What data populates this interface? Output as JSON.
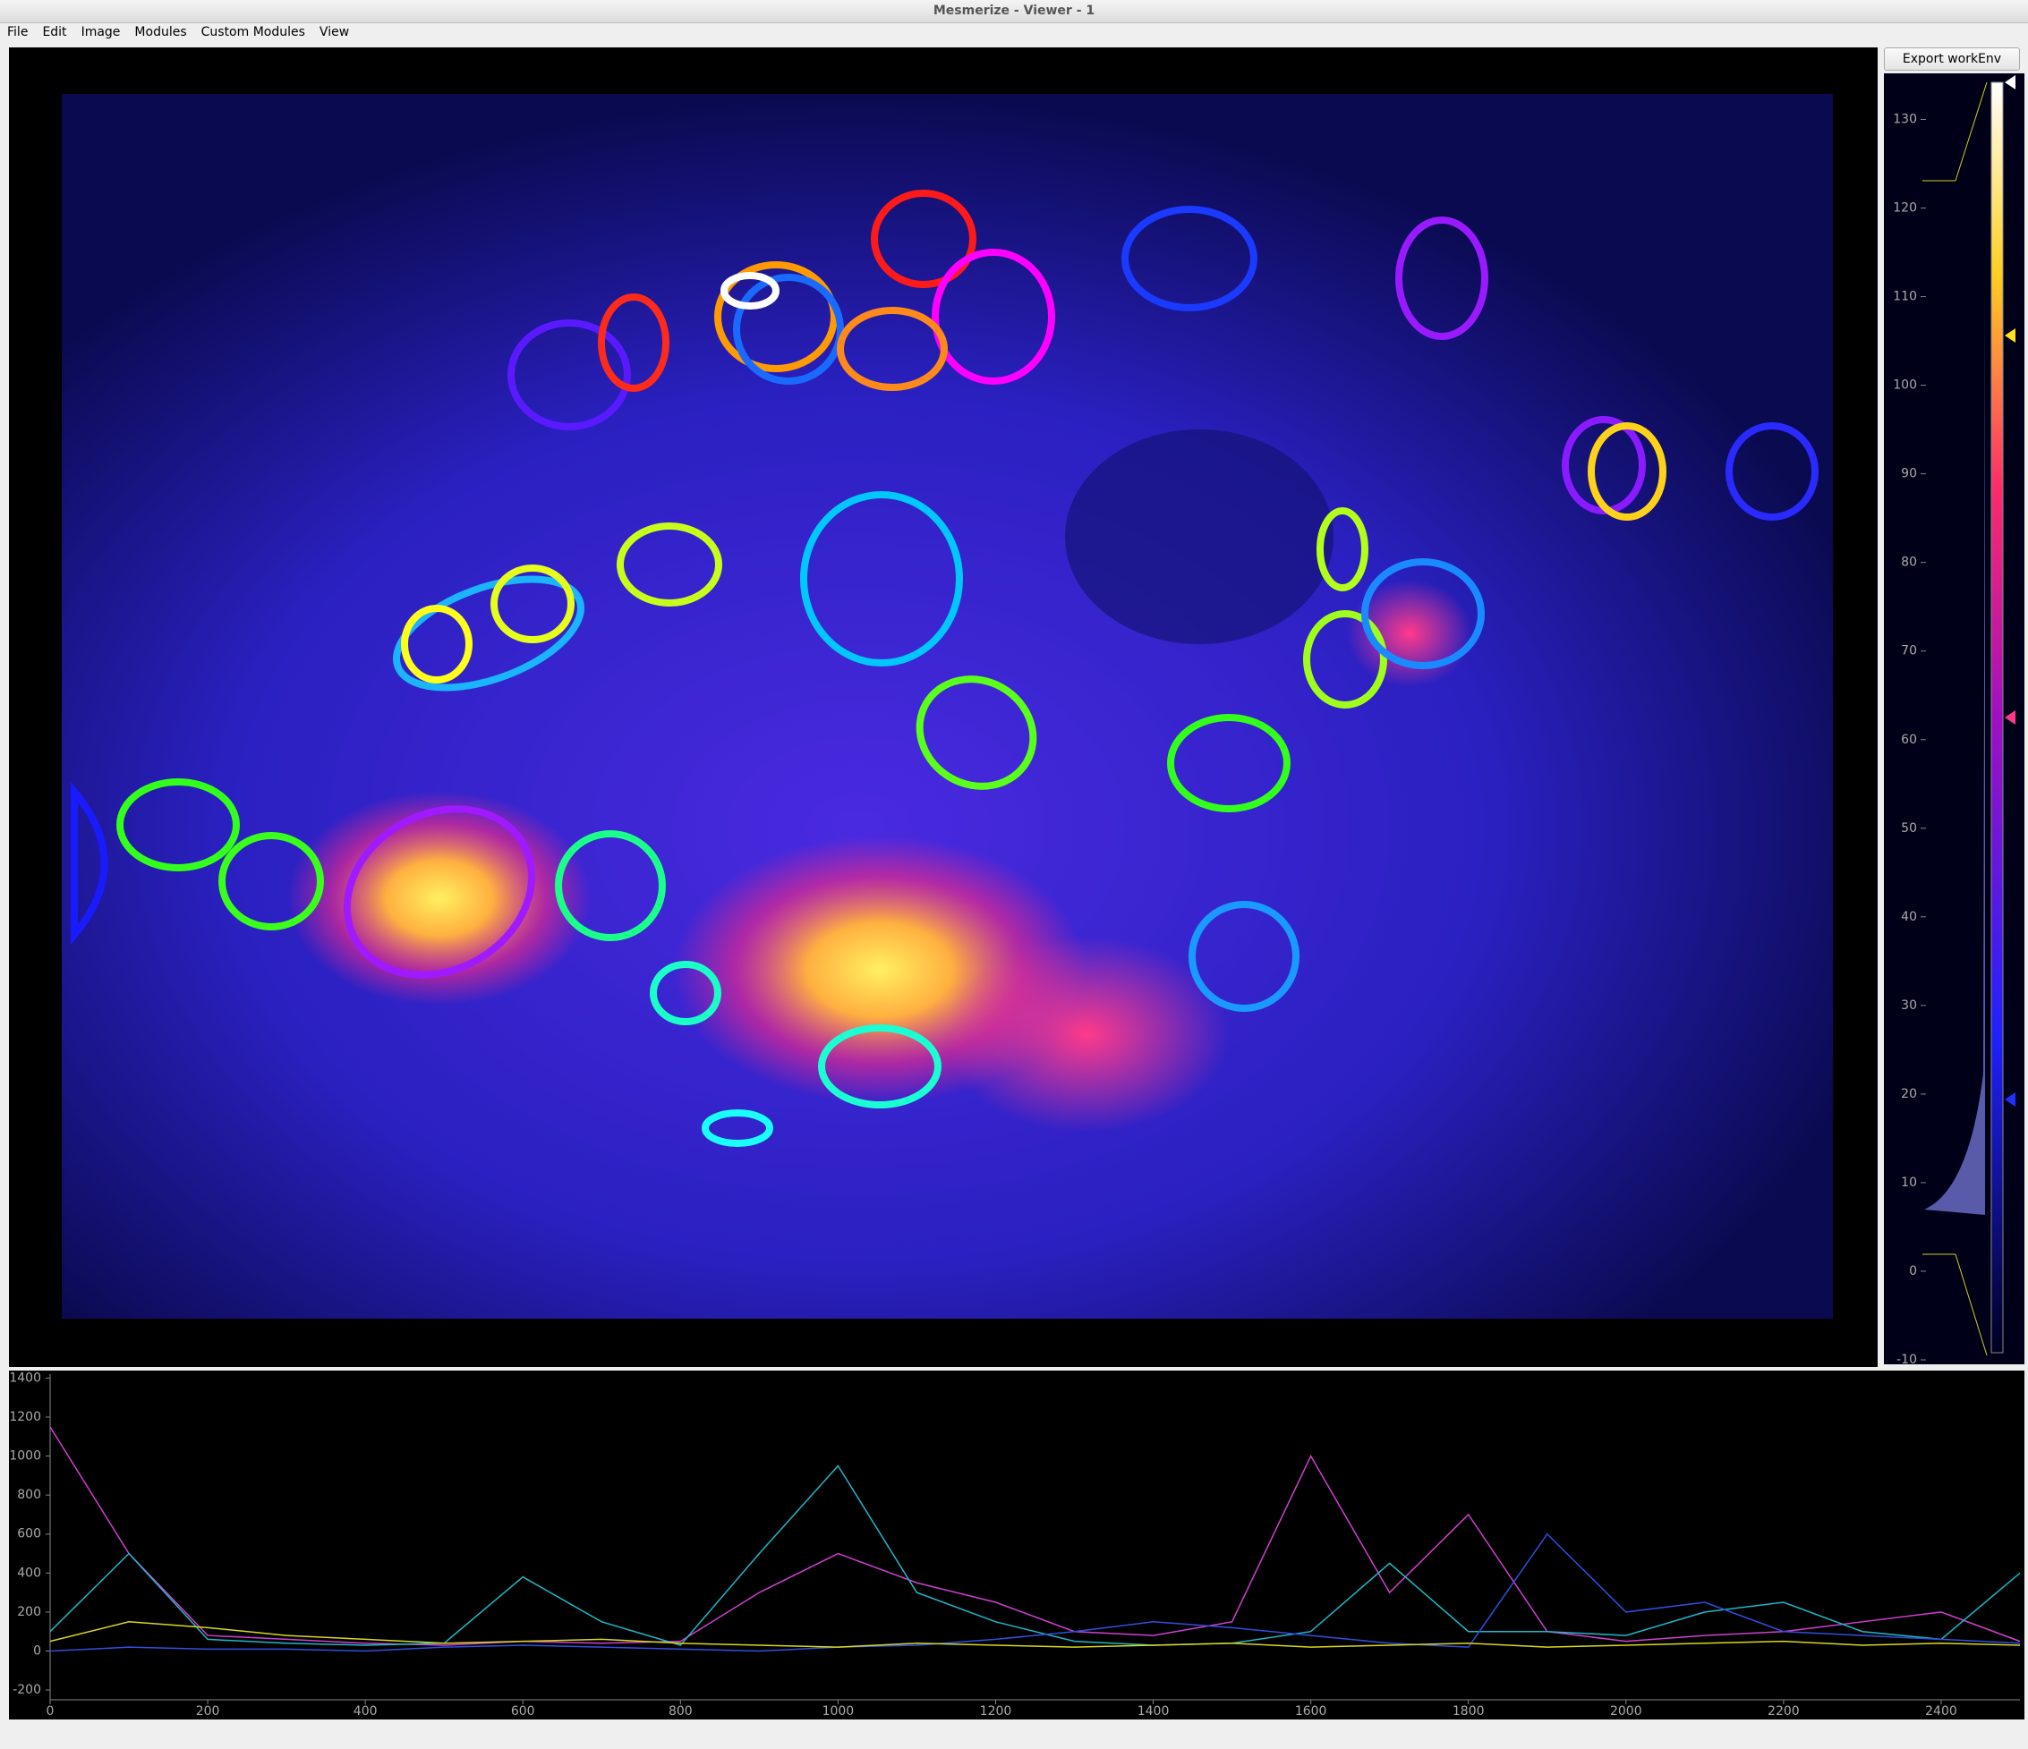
{
  "window": {
    "title": "Mesmerize - Viewer - 1"
  },
  "menu": [
    "File",
    "Edit",
    "Image",
    "Modules",
    "Custom Modules",
    "View"
  ],
  "side_panel": {
    "button": "Export workEnv",
    "histogram_axis": {
      "ylim": [
        -10,
        135
      ],
      "yticks": [
        -10,
        0,
        10,
        20,
        30,
        40,
        50,
        60,
        70,
        80,
        90,
        100,
        110,
        120,
        130
      ]
    }
  },
  "chart_data": {
    "type": "line",
    "xlim": [
      0,
      2500
    ],
    "ylim": [
      -250,
      1420
    ],
    "xticks": [
      0,
      200,
      400,
      600,
      800,
      1000,
      1200,
      1400,
      1600,
      1800,
      2000,
      2200,
      2400
    ],
    "yticks": [
      -200,
      0,
      200,
      400,
      600,
      800,
      1000,
      1200,
      1400
    ],
    "x": [
      0,
      100,
      200,
      300,
      400,
      500,
      600,
      700,
      800,
      900,
      1000,
      1100,
      1200,
      1300,
      1400,
      1500,
      1600,
      1700,
      1800,
      1900,
      2000,
      2100,
      2200,
      2300,
      2400,
      2500
    ],
    "series": [
      {
        "color": "#d040d0",
        "values": [
          1150,
          500,
          80,
          60,
          40,
          30,
          50,
          40,
          50,
          300,
          500,
          350,
          250,
          100,
          80,
          150,
          1000,
          300,
          700,
          100,
          50,
          80,
          100,
          150,
          200,
          50
        ]
      },
      {
        "color": "#20b8c8",
        "values": [
          100,
          500,
          60,
          40,
          30,
          40,
          380,
          150,
          30,
          500,
          950,
          300,
          150,
          50,
          30,
          40,
          100,
          450,
          100,
          100,
          80,
          200,
          250,
          100,
          60,
          400
        ]
      },
      {
        "color": "#3050e0",
        "values": [
          0,
          20,
          10,
          10,
          0,
          20,
          30,
          20,
          10,
          0,
          20,
          30,
          60,
          100,
          150,
          120,
          80,
          40,
          20,
          600,
          200,
          250,
          100,
          80,
          60,
          40
        ]
      },
      {
        "color": "#d8d820",
        "values": [
          50,
          150,
          120,
          80,
          60,
          40,
          50,
          60,
          40,
          30,
          20,
          40,
          30,
          20,
          30,
          40,
          20,
          30,
          40,
          20,
          30,
          40,
          50,
          30,
          40,
          30
        ]
      }
    ]
  }
}
